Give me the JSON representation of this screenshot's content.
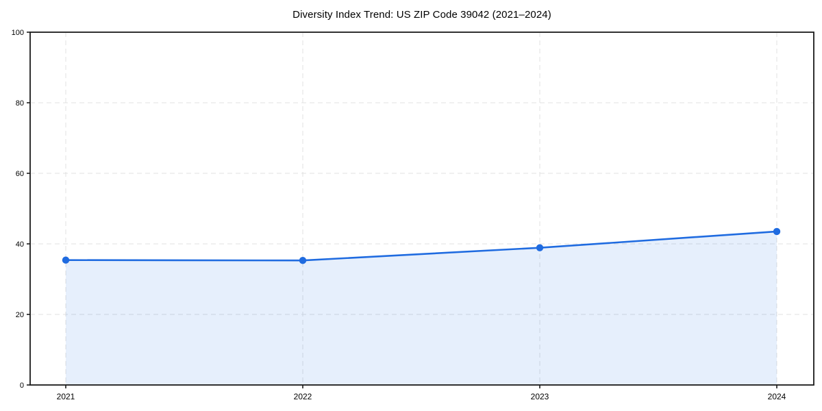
{
  "chart_data": {
    "type": "area",
    "title": "Diversity Index Trend: US ZIP Code 39042 (2021–2024)",
    "categories": [
      "2021",
      "2022",
      "2023",
      "2024"
    ],
    "values": [
      35.4,
      35.3,
      38.9,
      43.5
    ],
    "xlabel": "",
    "ylabel": "",
    "ylim": [
      0,
      100
    ],
    "yticks": [
      0,
      20,
      40,
      60,
      80,
      100
    ],
    "grid": "dashed, both axes",
    "legend_position": "none",
    "marker": "circle",
    "colors": {
      "line": "#1f6be0",
      "marker": "#1f6be0",
      "area_fill": "#1f6be0",
      "area_fill_opacity": "0.11",
      "gridline": "#e0e0e0",
      "spine": "#1a1a1a",
      "text": "#000000",
      "background": "#ffffff"
    }
  }
}
